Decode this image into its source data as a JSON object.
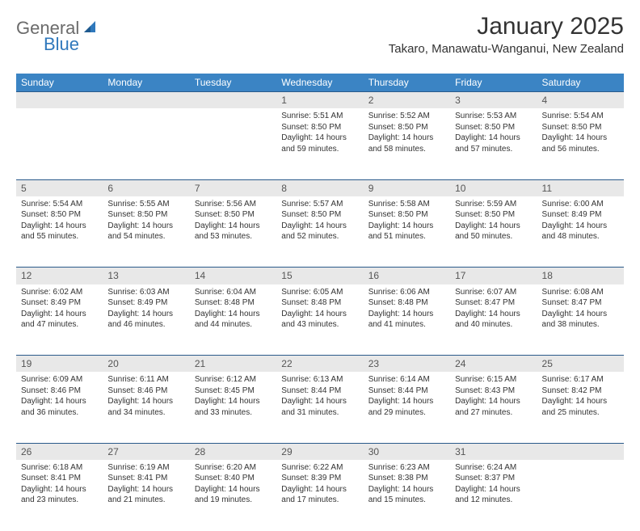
{
  "logo": {
    "part1": "General",
    "part2": "Blue"
  },
  "title": "January 2025",
  "location": "Takaro, Manawatu-Wanganui, New Zealand",
  "colors": {
    "header_bg": "#3b84c4",
    "header_text": "#ffffff",
    "daynum_bg": "#e8e8e8",
    "row_divider": "#2a5a8a",
    "logo_gray": "#6b6b6b",
    "logo_blue": "#2f78bc",
    "text": "#333333"
  },
  "day_headers": [
    "Sunday",
    "Monday",
    "Tuesday",
    "Wednesday",
    "Thursday",
    "Friday",
    "Saturday"
  ],
  "weeks": [
    {
      "nums": [
        "",
        "",
        "",
        "1",
        "2",
        "3",
        "4"
      ],
      "cells": [
        null,
        null,
        null,
        {
          "sunrise": "Sunrise: 5:51 AM",
          "sunset": "Sunset: 8:50 PM",
          "daylight": "Daylight: 14 hours and 59 minutes."
        },
        {
          "sunrise": "Sunrise: 5:52 AM",
          "sunset": "Sunset: 8:50 PM",
          "daylight": "Daylight: 14 hours and 58 minutes."
        },
        {
          "sunrise": "Sunrise: 5:53 AM",
          "sunset": "Sunset: 8:50 PM",
          "daylight": "Daylight: 14 hours and 57 minutes."
        },
        {
          "sunrise": "Sunrise: 5:54 AM",
          "sunset": "Sunset: 8:50 PM",
          "daylight": "Daylight: 14 hours and 56 minutes."
        }
      ]
    },
    {
      "nums": [
        "5",
        "6",
        "7",
        "8",
        "9",
        "10",
        "11"
      ],
      "cells": [
        {
          "sunrise": "Sunrise: 5:54 AM",
          "sunset": "Sunset: 8:50 PM",
          "daylight": "Daylight: 14 hours and 55 minutes."
        },
        {
          "sunrise": "Sunrise: 5:55 AM",
          "sunset": "Sunset: 8:50 PM",
          "daylight": "Daylight: 14 hours and 54 minutes."
        },
        {
          "sunrise": "Sunrise: 5:56 AM",
          "sunset": "Sunset: 8:50 PM",
          "daylight": "Daylight: 14 hours and 53 minutes."
        },
        {
          "sunrise": "Sunrise: 5:57 AM",
          "sunset": "Sunset: 8:50 PM",
          "daylight": "Daylight: 14 hours and 52 minutes."
        },
        {
          "sunrise": "Sunrise: 5:58 AM",
          "sunset": "Sunset: 8:50 PM",
          "daylight": "Daylight: 14 hours and 51 minutes."
        },
        {
          "sunrise": "Sunrise: 5:59 AM",
          "sunset": "Sunset: 8:50 PM",
          "daylight": "Daylight: 14 hours and 50 minutes."
        },
        {
          "sunrise": "Sunrise: 6:00 AM",
          "sunset": "Sunset: 8:49 PM",
          "daylight": "Daylight: 14 hours and 48 minutes."
        }
      ]
    },
    {
      "nums": [
        "12",
        "13",
        "14",
        "15",
        "16",
        "17",
        "18"
      ],
      "cells": [
        {
          "sunrise": "Sunrise: 6:02 AM",
          "sunset": "Sunset: 8:49 PM",
          "daylight": "Daylight: 14 hours and 47 minutes."
        },
        {
          "sunrise": "Sunrise: 6:03 AM",
          "sunset": "Sunset: 8:49 PM",
          "daylight": "Daylight: 14 hours and 46 minutes."
        },
        {
          "sunrise": "Sunrise: 6:04 AM",
          "sunset": "Sunset: 8:48 PM",
          "daylight": "Daylight: 14 hours and 44 minutes."
        },
        {
          "sunrise": "Sunrise: 6:05 AM",
          "sunset": "Sunset: 8:48 PM",
          "daylight": "Daylight: 14 hours and 43 minutes."
        },
        {
          "sunrise": "Sunrise: 6:06 AM",
          "sunset": "Sunset: 8:48 PM",
          "daylight": "Daylight: 14 hours and 41 minutes."
        },
        {
          "sunrise": "Sunrise: 6:07 AM",
          "sunset": "Sunset: 8:47 PM",
          "daylight": "Daylight: 14 hours and 40 minutes."
        },
        {
          "sunrise": "Sunrise: 6:08 AM",
          "sunset": "Sunset: 8:47 PM",
          "daylight": "Daylight: 14 hours and 38 minutes."
        }
      ]
    },
    {
      "nums": [
        "19",
        "20",
        "21",
        "22",
        "23",
        "24",
        "25"
      ],
      "cells": [
        {
          "sunrise": "Sunrise: 6:09 AM",
          "sunset": "Sunset: 8:46 PM",
          "daylight": "Daylight: 14 hours and 36 minutes."
        },
        {
          "sunrise": "Sunrise: 6:11 AM",
          "sunset": "Sunset: 8:46 PM",
          "daylight": "Daylight: 14 hours and 34 minutes."
        },
        {
          "sunrise": "Sunrise: 6:12 AM",
          "sunset": "Sunset: 8:45 PM",
          "daylight": "Daylight: 14 hours and 33 minutes."
        },
        {
          "sunrise": "Sunrise: 6:13 AM",
          "sunset": "Sunset: 8:44 PM",
          "daylight": "Daylight: 14 hours and 31 minutes."
        },
        {
          "sunrise": "Sunrise: 6:14 AM",
          "sunset": "Sunset: 8:44 PM",
          "daylight": "Daylight: 14 hours and 29 minutes."
        },
        {
          "sunrise": "Sunrise: 6:15 AM",
          "sunset": "Sunset: 8:43 PM",
          "daylight": "Daylight: 14 hours and 27 minutes."
        },
        {
          "sunrise": "Sunrise: 6:17 AM",
          "sunset": "Sunset: 8:42 PM",
          "daylight": "Daylight: 14 hours and 25 minutes."
        }
      ]
    },
    {
      "nums": [
        "26",
        "27",
        "28",
        "29",
        "30",
        "31",
        ""
      ],
      "cells": [
        {
          "sunrise": "Sunrise: 6:18 AM",
          "sunset": "Sunset: 8:41 PM",
          "daylight": "Daylight: 14 hours and 23 minutes."
        },
        {
          "sunrise": "Sunrise: 6:19 AM",
          "sunset": "Sunset: 8:41 PM",
          "daylight": "Daylight: 14 hours and 21 minutes."
        },
        {
          "sunrise": "Sunrise: 6:20 AM",
          "sunset": "Sunset: 8:40 PM",
          "daylight": "Daylight: 14 hours and 19 minutes."
        },
        {
          "sunrise": "Sunrise: 6:22 AM",
          "sunset": "Sunset: 8:39 PM",
          "daylight": "Daylight: 14 hours and 17 minutes."
        },
        {
          "sunrise": "Sunrise: 6:23 AM",
          "sunset": "Sunset: 8:38 PM",
          "daylight": "Daylight: 14 hours and 15 minutes."
        },
        {
          "sunrise": "Sunrise: 6:24 AM",
          "sunset": "Sunset: 8:37 PM",
          "daylight": "Daylight: 14 hours and 12 minutes."
        },
        null
      ]
    }
  ]
}
